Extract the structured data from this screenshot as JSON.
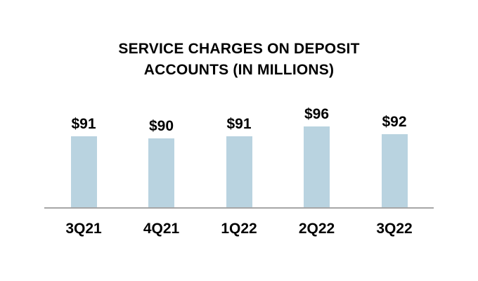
{
  "chart_data": {
    "type": "bar",
    "title": "SERVICE CHARGES ON DEPOSIT ACCOUNTS (IN MILLIONS)",
    "title_lines": [
      "SERVICE CHARGES ON DEPOSIT",
      "ACCOUNTS (IN MILLIONS)"
    ],
    "categories": [
      "3Q21",
      "4Q21",
      "1Q22",
      "2Q22",
      "3Q22"
    ],
    "values": [
      91,
      90,
      91,
      96,
      92
    ],
    "value_labels": [
      "$91",
      "$90",
      "$91",
      "$96",
      "$92"
    ],
    "xlabel": "",
    "ylabel": "",
    "ylim": [
      55,
      140
    ],
    "grid": false,
    "legend": false,
    "colors": {
      "bar_fill": "#b9d3e0",
      "axis_line": "#a6a6a6",
      "text": "#000000",
      "background": "#ffffff"
    }
  }
}
